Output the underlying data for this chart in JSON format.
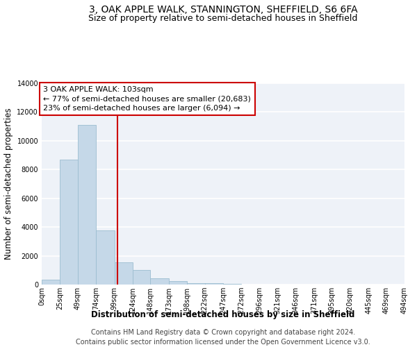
{
  "title": "3, OAK APPLE WALK, STANNINGTON, SHEFFIELD, S6 6FA",
  "subtitle": "Size of property relative to semi-detached houses in Sheffield",
  "xlabel": "Distribution of semi-detached houses by size in Sheffield",
  "ylabel": "Number of semi-detached properties",
  "footer_line1": "Contains HM Land Registry data © Crown copyright and database right 2024.",
  "footer_line2": "Contains public sector information licensed under the Open Government Licence v3.0.",
  "annotation_line1": "3 OAK APPLE WALK: 103sqm",
  "annotation_line2": "← 77% of semi-detached houses are smaller (20,683)",
  "annotation_line3": "23% of semi-detached houses are larger (6,094) →",
  "property_size": 103,
  "bin_edges": [
    0,
    25,
    49,
    74,
    99,
    124,
    148,
    173,
    198,
    222,
    247,
    272,
    296,
    321,
    346,
    371,
    395,
    420,
    445,
    469,
    494
  ],
  "bin_labels": [
    "0sqm",
    "25sqm",
    "49sqm",
    "74sqm",
    "99sqm",
    "124sqm",
    "148sqm",
    "173sqm",
    "198sqm",
    "222sqm",
    "247sqm",
    "272sqm",
    "296sqm",
    "321sqm",
    "346sqm",
    "371sqm",
    "395sqm",
    "420sqm",
    "445sqm",
    "469sqm",
    "494sqm"
  ],
  "bar_values": [
    350,
    8700,
    11100,
    3750,
    1550,
    1000,
    425,
    250,
    100,
    75,
    30,
    20,
    10,
    5,
    3,
    2,
    1,
    1,
    0,
    0
  ],
  "bar_color": "#c5d8e8",
  "bar_edge_color": "#9bbdd0",
  "highlight_line_color": "#cc0000",
  "annotation_box_color": "#cc0000",
  "ylim": [
    0,
    14000
  ],
  "yticks": [
    0,
    2000,
    4000,
    6000,
    8000,
    10000,
    12000,
    14000
  ],
  "bg_color": "#eef2f8",
  "grid_color": "#ffffff",
  "title_fontsize": 10,
  "subtitle_fontsize": 9,
  "axis_label_fontsize": 8.5,
  "tick_fontsize": 7,
  "annotation_fontsize": 8,
  "footer_fontsize": 7
}
